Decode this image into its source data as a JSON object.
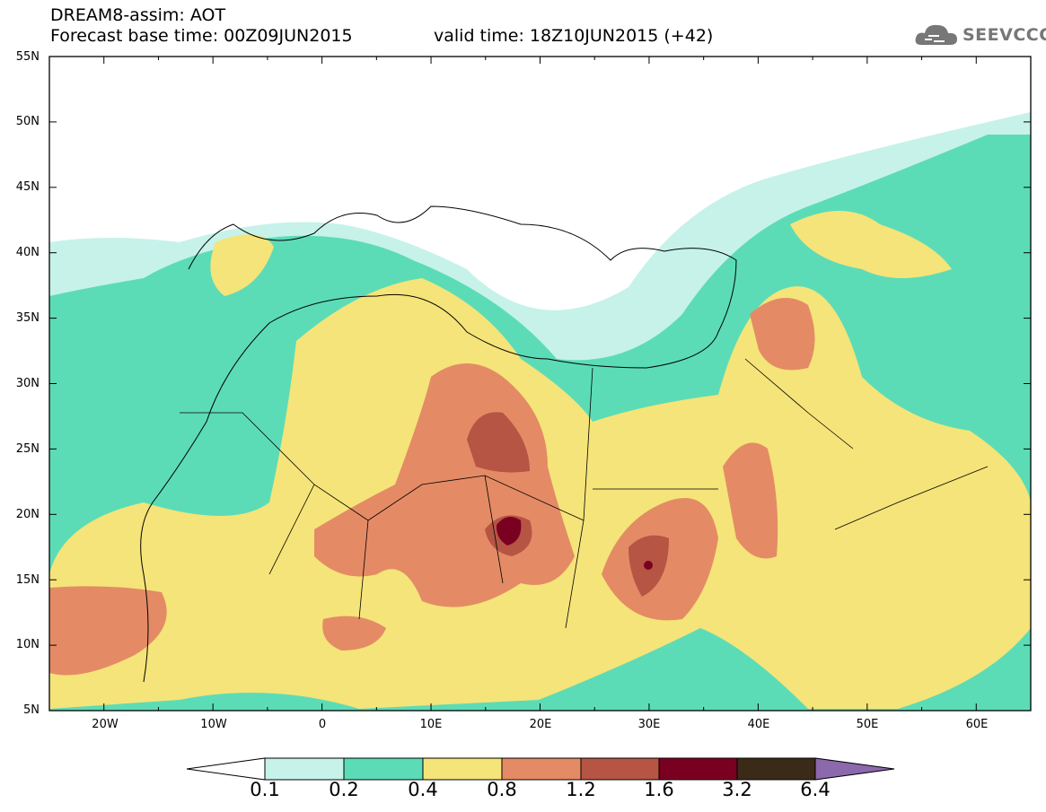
{
  "header": {
    "title_line1": "DREAM8-assim: AOT",
    "base_time": "Forecast base time: 00Z09JUN2015",
    "valid_time": "valid time: 18Z10JUN2015 (+42)"
  },
  "logo": {
    "text": "SEEVCCC",
    "icon": "cloud-icon"
  },
  "axes": {
    "lat_labels": [
      "55N",
      "50N",
      "45N",
      "40N",
      "35N",
      "30N",
      "25N",
      "20N",
      "15N",
      "10N",
      "5N"
    ],
    "lon_labels": [
      "20W",
      "10W",
      "0",
      "10E",
      "20E",
      "30E",
      "40E",
      "50E",
      "60E"
    ]
  },
  "colorbar": {
    "labels": [
      "0.1",
      "0.2",
      "0.4",
      "0.8",
      "1.2",
      "1.6",
      "3.2",
      "6.4"
    ],
    "colors": [
      "#ffffff",
      "#c6f2ea",
      "#5cdcb6",
      "#f5e479",
      "#e48b66",
      "#b65543",
      "#7a0022",
      "#3c2a18",
      "#8c68ad"
    ]
  },
  "map": {
    "region": "North Africa, Europe, Middle East",
    "extent": {
      "lon": [
        -25,
        65
      ],
      "lat": [
        5,
        55
      ]
    },
    "field": "AOT"
  }
}
